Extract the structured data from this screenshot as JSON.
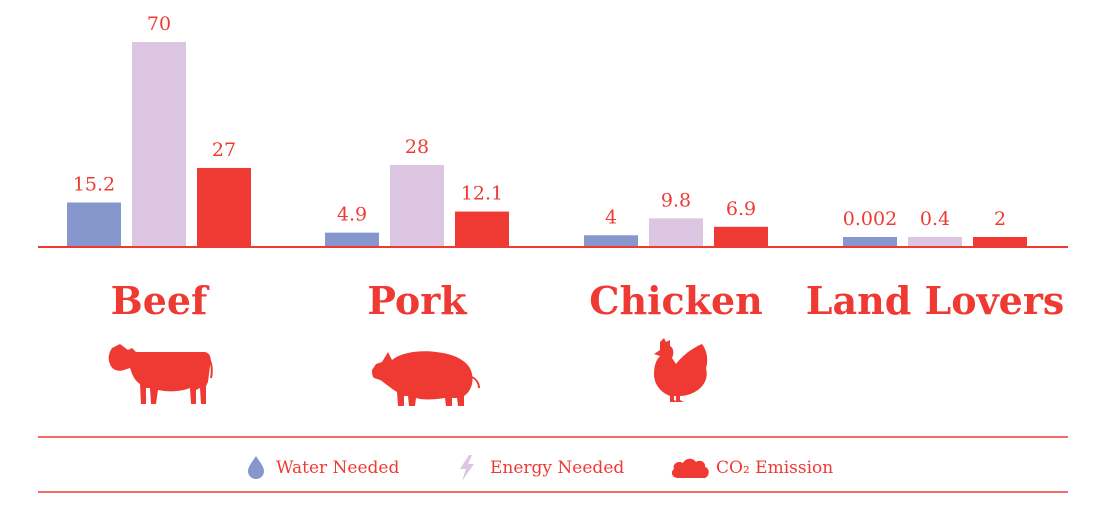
{
  "colors": {
    "water": "#8597cc",
    "energy": "#dbc5e0",
    "co2": "#ef3a33",
    "text": "#ef3a33",
    "line": "#ef3a33",
    "legend_text": "#ef3a33"
  },
  "chart_data": {
    "type": "bar",
    "categories": [
      "Beef",
      "Pork",
      "Chicken",
      "Land Lovers"
    ],
    "category_icons": [
      "cow-icon",
      "pig-icon",
      "chicken-icon",
      ""
    ],
    "series": [
      {
        "name": "Water Needed",
        "key": "water",
        "values": [
          15.2,
          4.9,
          4,
          0.002
        ]
      },
      {
        "name": "Energy Needed",
        "key": "energy",
        "values": [
          70,
          28,
          9.8,
          0.4
        ]
      },
      {
        "name": "CO₂ Emission",
        "key": "co2",
        "values": [
          27,
          12.1,
          6.9,
          2
        ]
      }
    ],
    "value_labels": [
      [
        "15.2",
        "4.9",
        "4",
        "0.002"
      ],
      [
        "70",
        "28",
        "9.8",
        "0.4"
      ],
      [
        "27",
        "12.1",
        "6.9",
        "2"
      ]
    ],
    "legend": {
      "placement": "bottom",
      "items": [
        {
          "label": "Water Needed",
          "icon": "water-drop-icon",
          "key": "water"
        },
        {
          "label": "Energy Needed",
          "icon": "lightning-icon",
          "key": "energy"
        },
        {
          "label": "CO₂ Emission",
          "icon": "cloud-icon",
          "key": "co2"
        }
      ]
    },
    "grid": false
  }
}
